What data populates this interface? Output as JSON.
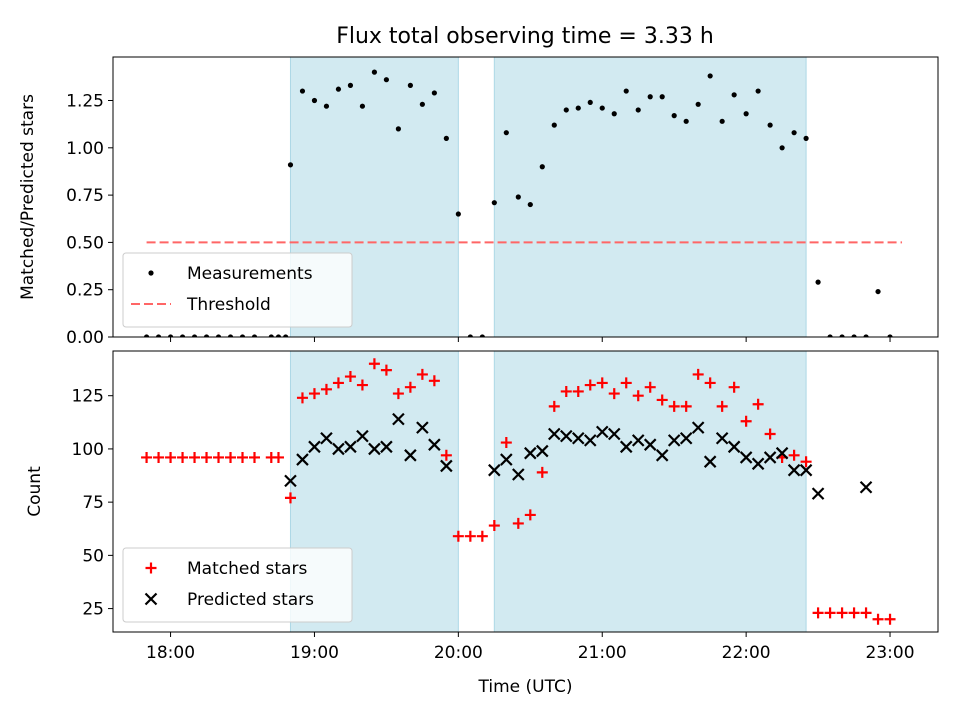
{
  "title": "Flux total observing time = 3.33 h",
  "colors": {
    "band": "#add8e6",
    "measurement": "#000000",
    "threshold": "#ff6666",
    "matched": "#ff0000",
    "predicted": "#000000"
  },
  "chart_data": [
    {
      "type": "scatter",
      "panel": "top",
      "title": "Flux total observing time = 3.33 h",
      "xlabel": "",
      "ylabel": "Matched/Predicted stars",
      "xlim": [
        "17:36",
        "23:20"
      ],
      "ylim": [
        0,
        1.48
      ],
      "yticks": [
        0.0,
        0.25,
        0.5,
        0.75,
        1.0,
        1.25
      ],
      "ytick_labels": [
        "0.00",
        "0.25",
        "0.50",
        "0.75",
        "1.00",
        "1.25"
      ],
      "xticks": [
        "18:00",
        "19:00",
        "20:00",
        "21:00",
        "22:00",
        "23:00"
      ],
      "shaded_intervals": [
        [
          "18:50",
          "20:00"
        ],
        [
          "20:15",
          "22:25"
        ]
      ],
      "legend_position": "lower-left",
      "series": [
        {
          "name": "Measurements",
          "marker": "dot",
          "x": [
            "17:50",
            "17:55",
            "18:00",
            "18:05",
            "18:10",
            "18:15",
            "18:20",
            "18:25",
            "18:30",
            "18:35",
            "18:42",
            "18:45",
            "18:48",
            "18:50",
            "18:55",
            "19:00",
            "19:05",
            "19:10",
            "19:15",
            "19:20",
            "19:25",
            "19:30",
            "19:35",
            "19:40",
            "19:45",
            "19:50",
            "19:55",
            "20:00",
            "20:05",
            "20:10",
            "20:15",
            "20:20",
            "20:25",
            "20:30",
            "20:35",
            "20:40",
            "20:45",
            "20:50",
            "20:55",
            "21:00",
            "21:05",
            "21:10",
            "21:15",
            "21:20",
            "21:25",
            "21:30",
            "21:35",
            "21:40",
            "21:45",
            "21:50",
            "21:55",
            "22:00",
            "22:05",
            "22:10",
            "22:15",
            "22:20",
            "22:25",
            "22:30",
            "22:35",
            "22:40",
            "22:45",
            "22:50",
            "22:55",
            "23:00"
          ],
          "values": [
            0,
            0,
            0,
            0,
            0,
            0,
            0,
            0,
            0,
            0,
            0,
            0,
            0,
            0.91,
            1.3,
            1.25,
            1.22,
            1.31,
            1.33,
            1.22,
            1.4,
            1.36,
            1.1,
            1.33,
            1.23,
            1.29,
            1.05,
            0.65,
            0,
            0,
            0.71,
            1.08,
            0.74,
            0.7,
            0.9,
            1.12,
            1.2,
            1.21,
            1.24,
            1.21,
            1.18,
            1.3,
            1.2,
            1.27,
            1.27,
            1.17,
            1.14,
            1.23,
            1.38,
            1.14,
            1.28,
            1.18,
            1.3,
            1.12,
            1.0,
            1.08,
            1.05,
            0.29,
            0,
            0,
            0,
            0,
            0.24,
            0
          ]
        },
        {
          "name": "Threshold",
          "marker": "dashed-line",
          "x": [
            "17:50",
            "23:05"
          ],
          "values": [
            0.5,
            0.5
          ]
        }
      ]
    },
    {
      "type": "scatter",
      "panel": "bottom",
      "xlabel": "Time (UTC)",
      "ylabel": "Count",
      "xlim": [
        "17:36",
        "23:20"
      ],
      "ylim": [
        14,
        146
      ],
      "yticks": [
        25,
        50,
        75,
        100,
        125
      ],
      "ytick_labels": [
        "25",
        "50",
        "75",
        "100",
        "125"
      ],
      "xticks": [
        "18:00",
        "19:00",
        "20:00",
        "21:00",
        "22:00",
        "23:00"
      ],
      "shaded_intervals": [
        [
          "18:50",
          "20:00"
        ],
        [
          "20:15",
          "22:25"
        ]
      ],
      "legend_position": "lower-left",
      "series": [
        {
          "name": "Matched stars",
          "marker": "plus",
          "x": [
            "17:50",
            "17:55",
            "18:00",
            "18:05",
            "18:10",
            "18:15",
            "18:20",
            "18:25",
            "18:30",
            "18:35",
            "18:42",
            "18:45",
            "18:50",
            "18:55",
            "19:00",
            "19:05",
            "19:10",
            "19:15",
            "19:20",
            "19:25",
            "19:30",
            "19:35",
            "19:40",
            "19:45",
            "19:50",
            "19:55",
            "20:00",
            "20:05",
            "20:10",
            "20:15",
            "20:20",
            "20:25",
            "20:30",
            "20:35",
            "20:40",
            "20:45",
            "20:50",
            "20:55",
            "21:00",
            "21:05",
            "21:10",
            "21:15",
            "21:20",
            "21:25",
            "21:30",
            "21:35",
            "21:40",
            "21:45",
            "21:50",
            "21:55",
            "22:00",
            "22:05",
            "22:10",
            "22:15",
            "22:20",
            "22:25",
            "22:30",
            "22:35",
            "22:40",
            "22:45",
            "22:50",
            "22:55",
            "23:00"
          ],
          "values": [
            96,
            96,
            96,
            96,
            96,
            96,
            96,
            96,
            96,
            96,
            96,
            96,
            77,
            124,
            126,
            128,
            131,
            134,
            130,
            140,
            137,
            126,
            129,
            135,
            132,
            97,
            59,
            59,
            59,
            64,
            103,
            65,
            69,
            89,
            120,
            127,
            127,
            130,
            131,
            126,
            131,
            125,
            129,
            123,
            120,
            120,
            135,
            131,
            120,
            129,
            113,
            121,
            107,
            96,
            97,
            94,
            23,
            23,
            23,
            23,
            23,
            20,
            20
          ]
        },
        {
          "name": "Predicted stars",
          "marker": "x",
          "x": [
            "18:50",
            "18:55",
            "19:00",
            "19:05",
            "19:10",
            "19:15",
            "19:20",
            "19:25",
            "19:30",
            "19:35",
            "19:40",
            "19:45",
            "19:50",
            "19:55",
            "20:15",
            "20:20",
            "20:25",
            "20:30",
            "20:35",
            "20:40",
            "20:45",
            "20:50",
            "20:55",
            "21:00",
            "21:05",
            "21:10",
            "21:15",
            "21:20",
            "21:25",
            "21:30",
            "21:35",
            "21:40",
            "21:45",
            "21:50",
            "21:55",
            "22:00",
            "22:05",
            "22:10",
            "22:15",
            "22:20",
            "22:25",
            "22:30",
            "22:50"
          ],
          "values": [
            85,
            95,
            101,
            105,
            100,
            101,
            106,
            100,
            101,
            114,
            97,
            110,
            102,
            92,
            90,
            95,
            88,
            98,
            99,
            107,
            106,
            105,
            104,
            108,
            107,
            101,
            104,
            102,
            97,
            104,
            105,
            110,
            94,
            105,
            101,
            96,
            93,
            96,
            98,
            90,
            90,
            79,
            82
          ]
        }
      ]
    }
  ]
}
